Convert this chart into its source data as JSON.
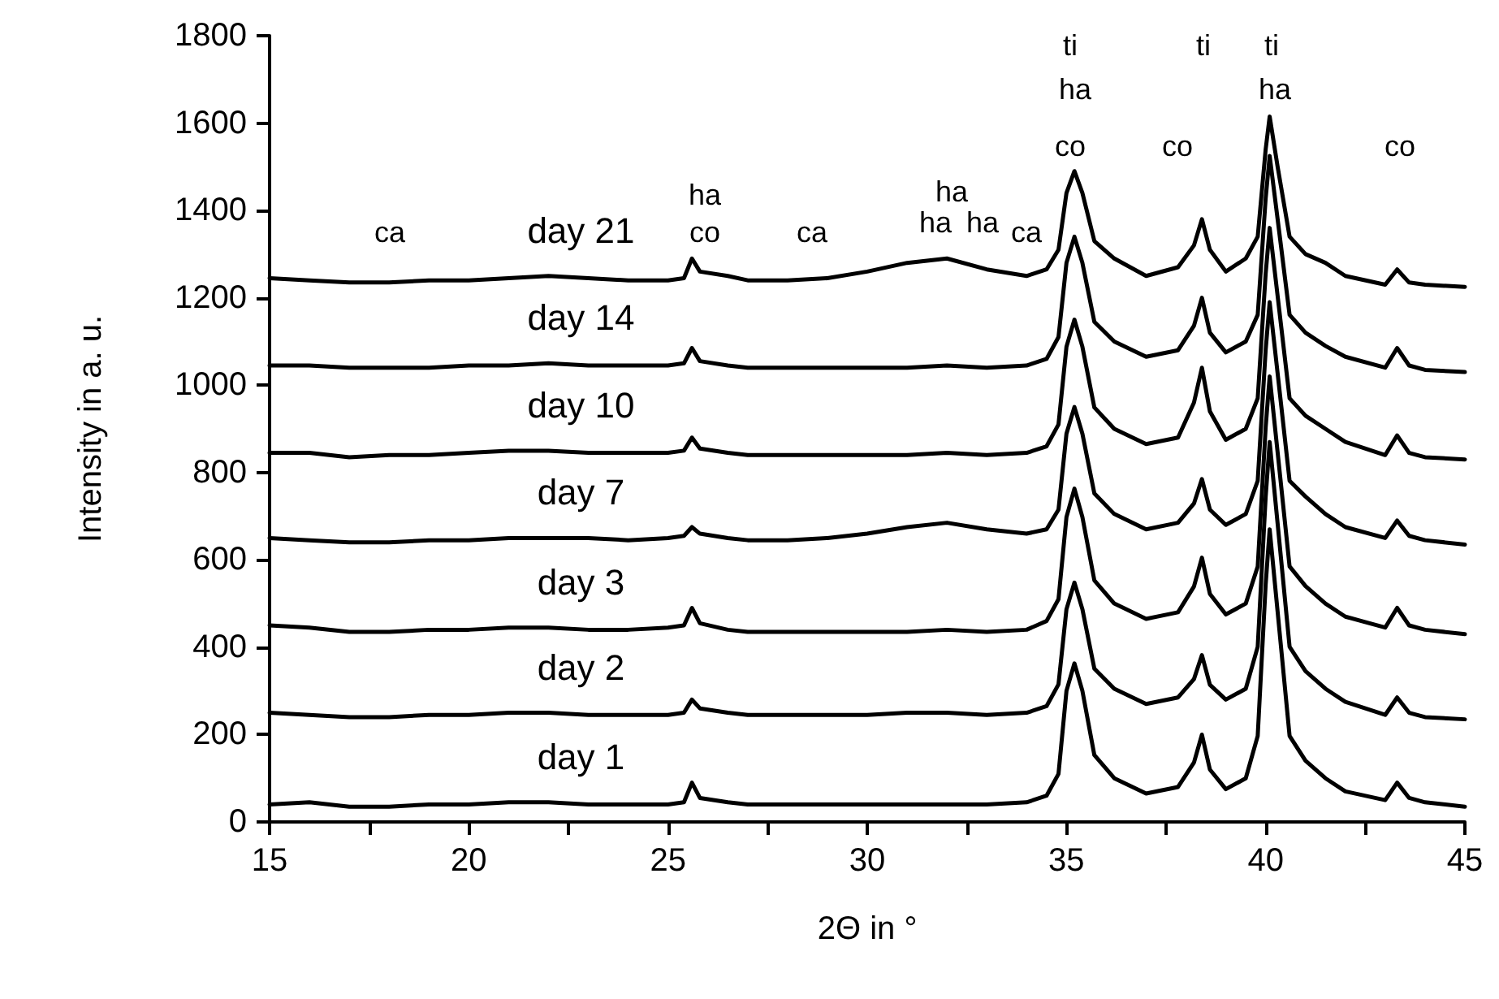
{
  "chart_data": {
    "type": "line",
    "xlabel": "2Θ in °",
    "ylabel": "Intensity in a. u.",
    "x": [
      15,
      16,
      17,
      18,
      19,
      20,
      21,
      22,
      23,
      24,
      25,
      25.4,
      25.6,
      25.8,
      26.5,
      27,
      28,
      29,
      30,
      31,
      32,
      33,
      34,
      34.5,
      34.8,
      35.0,
      35.2,
      35.4,
      35.7,
      36.2,
      37,
      37.8,
      38.2,
      38.4,
      38.6,
      39,
      39.5,
      39.8,
      40.0,
      40.1,
      40.3,
      40.6,
      41,
      41.5,
      42,
      43,
      43.3,
      43.6,
      44,
      45
    ],
    "series": [
      {
        "name": "day 1",
        "color": "#000000",
        "values": [
          40,
          45,
          35,
          35,
          40,
          40,
          45,
          45,
          40,
          40,
          40,
          45,
          90,
          55,
          45,
          40,
          40,
          40,
          40,
          40,
          40,
          40,
          45,
          60,
          110,
          300,
          363,
          300,
          153,
          100,
          65,
          80,
          136,
          200,
          120,
          75,
          100,
          197,
          544,
          670,
          481,
          197,
          140,
          100,
          70,
          50,
          90,
          55,
          45,
          35
        ]
      },
      {
        "name": "day 2",
        "color": "#000000",
        "values": [
          250,
          245,
          240,
          240,
          245,
          245,
          250,
          250,
          245,
          245,
          245,
          250,
          280,
          260,
          250,
          245,
          245,
          245,
          245,
          250,
          250,
          245,
          250,
          265,
          315,
          487,
          548,
          487,
          351,
          305,
          270,
          285,
          327,
          382,
          314,
          280,
          305,
          401,
          745,
          870,
          683,
          401,
          345,
          305,
          275,
          245,
          285,
          250,
          240,
          235
        ]
      },
      {
        "name": "day 3",
        "color": "#000000",
        "values": [
          450,
          445,
          435,
          435,
          440,
          440,
          445,
          445,
          440,
          440,
          445,
          450,
          490,
          455,
          440,
          435,
          435,
          435,
          435,
          435,
          440,
          435,
          440,
          460,
          510,
          698,
          763,
          698,
          553,
          500,
          465,
          480,
          539,
          605,
          522,
          475,
          500,
          585,
          904,
          1020,
          846,
          585,
          540,
          500,
          470,
          445,
          490,
          450,
          440,
          430
        ]
      },
      {
        "name": "day 7",
        "color": "#000000",
        "values": [
          650,
          645,
          640,
          640,
          645,
          645,
          650,
          650,
          650,
          645,
          650,
          655,
          675,
          660,
          650,
          645,
          645,
          650,
          660,
          675,
          685,
          670,
          660,
          670,
          715,
          889,
          950,
          889,
          752,
          705,
          670,
          685,
          729,
          785,
          715,
          680,
          705,
          781,
          1081,
          1190,
          1027,
          781,
          745,
          705,
          675,
          650,
          690,
          655,
          645,
          635
        ]
      },
      {
        "name": "day 10",
        "color": "#000000",
        "values": [
          845,
          845,
          835,
          840,
          840,
          845,
          850,
          850,
          845,
          845,
          845,
          850,
          880,
          855,
          845,
          840,
          840,
          840,
          840,
          840,
          845,
          840,
          845,
          860,
          910,
          1088,
          1150,
          1088,
          949,
          900,
          865,
          880,
          960,
          1040,
          940,
          875,
          900,
          970,
          1256,
          1360,
          1204,
          970,
          930,
          900,
          870,
          840,
          885,
          845,
          835,
          830
        ]
      },
      {
        "name": "day 14",
        "color": "#000000",
        "values": [
          1045,
          1045,
          1040,
          1040,
          1040,
          1045,
          1045,
          1050,
          1045,
          1045,
          1045,
          1050,
          1085,
          1055,
          1045,
          1040,
          1040,
          1040,
          1040,
          1040,
          1045,
          1040,
          1045,
          1060,
          1110,
          1280,
          1340,
          1280,
          1145,
          1100,
          1065,
          1080,
          1136,
          1200,
          1120,
          1075,
          1100,
          1161,
          1428,
          1525,
          1380,
          1161,
          1120,
          1090,
          1065,
          1040,
          1085,
          1045,
          1035,
          1030
        ]
      },
      {
        "name": "day 21",
        "color": "#000000",
        "values": [
          1245,
          1240,
          1235,
          1235,
          1240,
          1240,
          1245,
          1250,
          1245,
          1240,
          1240,
          1245,
          1290,
          1260,
          1250,
          1240,
          1240,
          1245,
          1260,
          1280,
          1290,
          1265,
          1250,
          1265,
          1310,
          1440,
          1490,
          1440,
          1330,
          1290,
          1250,
          1270,
          1320,
          1380,
          1310,
          1260,
          1290,
          1340,
          1540,
          1615,
          1500,
          1340,
          1300,
          1280,
          1250,
          1230,
          1265,
          1235,
          1230,
          1225
        ]
      }
    ],
    "xlim": [
      15,
      45
    ],
    "xticks": [
      15,
      {
        "value": 17.5,
        "label": null
      },
      20,
      {
        "value": 22.5,
        "label": null
      },
      25,
      {
        "value": 27.5,
        "label": null
      },
      30,
      {
        "value": 32.5,
        "label": null
      },
      35,
      {
        "value": 37.5,
        "label": null
      },
      40,
      {
        "value": 42.5,
        "label": null
      },
      45
    ],
    "ylim": [
      0,
      1800
    ],
    "yticks": [
      0,
      200,
      400,
      600,
      800,
      1000,
      1200,
      1400,
      1600,
      1800
    ],
    "grid": false,
    "legend": false,
    "marker": "none",
    "line_style": "solid",
    "annotations": [
      "ca",
      "ha",
      "co",
      "ca",
      "ha",
      "ha",
      "ha",
      "ca",
      "ti",
      "ha",
      "co",
      "co",
      "ti",
      "ti",
      "ha",
      "co"
    ]
  }
}
